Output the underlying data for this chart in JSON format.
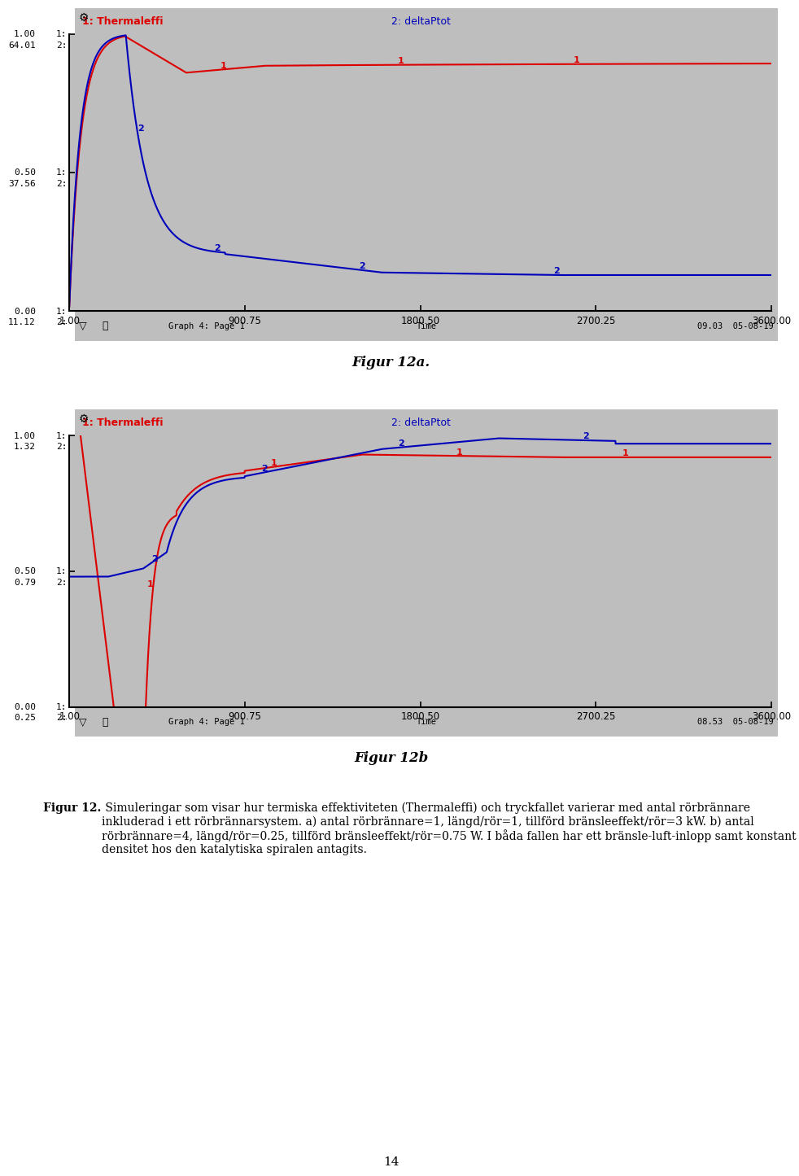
{
  "fig_width": 9.6,
  "fig_height": 14.56,
  "bg_color": "#bebebe",
  "plot_bg_color": "#bebebe",
  "white_bg": "#ffffff",
  "graph1": {
    "title_left": "1: Thermaleffi",
    "title_right": "2: deltaPtot",
    "y1_labels": [
      "1:",
      "1:",
      "1:"
    ],
    "y2_labels": [
      "2:",
      "2:",
      "2:"
    ],
    "y1_vals": [
      "1.00",
      "0.50",
      "0.00"
    ],
    "y2_vals": [
      "64.01",
      "37.56",
      "11.12"
    ],
    "xlabel_vals": [
      "1.00",
      "900.75",
      "1800.50",
      "2700.25",
      "3600.00"
    ],
    "footer_left": "Graph 4: Page 1",
    "footer_center": "Time",
    "footer_right": "09.03  05-08-19",
    "xmin": 1.0,
    "xmax": 3600.0
  },
  "graph2": {
    "title_left": "1: Thermaleffi",
    "title_right": "2: deltaPtot",
    "y1_labels": [
      "1:",
      "1:",
      "1:"
    ],
    "y2_labels": [
      "2:",
      "2:",
      "2:"
    ],
    "y1_vals": [
      "1.00",
      "0.50",
      "0.00"
    ],
    "y2_vals": [
      "1.32",
      "0.79",
      "0.25"
    ],
    "xlabel_vals": [
      "1.00",
      "900.75",
      "1800.50",
      "2700.25",
      "3600.00"
    ],
    "footer_left": "Graph 4: Page 1",
    "footer_center": "Time",
    "footer_right": "08.53  05-08-19",
    "xmin": 1.0,
    "xmax": 3600.0
  },
  "fig12a_label": "Figur 12a.",
  "fig12b_label": "Figur 12b",
  "page_number": "14",
  "red_color": "#dd0000",
  "blue_color": "#0000bb",
  "black_color": "#000000",
  "caption_bold": "Figur 12.",
  "caption_rest": " Simuleringar som visar hur termiska effektiviteten (Thermaleffi) och tryckfallet varierar med antal rörbrännare inkluderad i ett rörbrännarsystem. a) antal rörbrännare=1, längd/rör=1, tillförd bränsleeffekt/rör=3 kW. b) antal rörbrännare=4, längd/rör=0.25, tillförd bränsleeffekt/rör=0.75 W. I båda fallen har ett bränsle-luft-inlopp samt konstant densitet hos den katalytiska spiralen antagits."
}
